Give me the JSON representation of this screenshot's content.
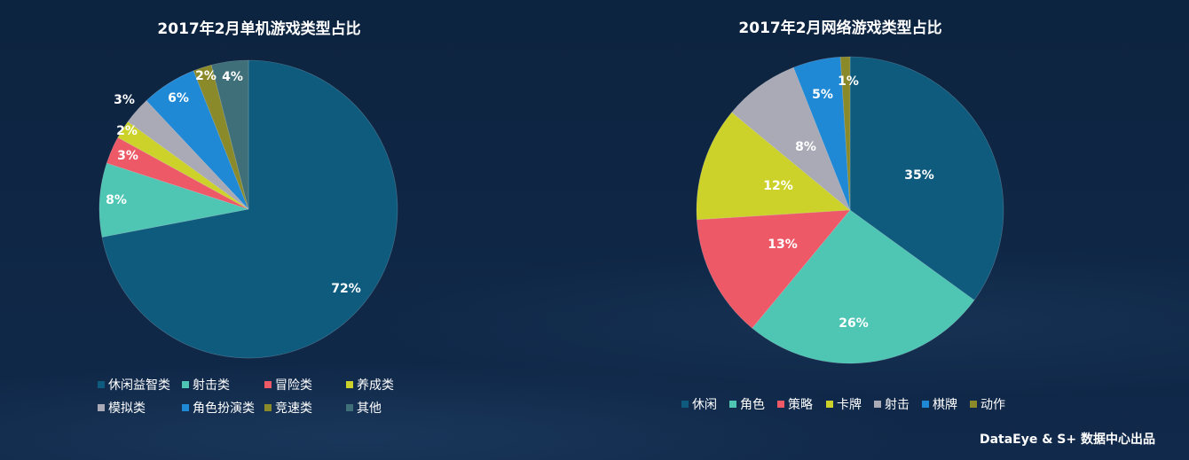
{
  "footer": "DataEye & S+ 数据中心出品",
  "colors": {
    "background": "#0f2742",
    "teal_blue": "#0f5b7e",
    "mint": "#4ec6b3",
    "red": "#ee5968",
    "yellow": "#cdd22a",
    "gray": "#a9aab5",
    "blue": "#2089d6",
    "olive": "#8a8a2a",
    "dark_teal": "#3f6f78"
  },
  "chart_data": [
    {
      "type": "pie",
      "title": "2017年2月单机游戏类型占比",
      "slices": [
        {
          "name": "休闲益智类",
          "value": 72,
          "label": "72%",
          "color": "#0f5b7e"
        },
        {
          "name": "射击类",
          "value": 8,
          "label": "8%",
          "color": "#4ec6b3"
        },
        {
          "name": "冒险类",
          "value": 3,
          "label": "3%",
          "color": "#ee5968"
        },
        {
          "name": "养成类",
          "value": 2,
          "label": "2%",
          "color": "#cdd22a"
        },
        {
          "name": "模拟类",
          "value": 3,
          "label": "3%",
          "color": "#a9aab5"
        },
        {
          "name": "角色扮演类",
          "value": 6,
          "label": "6%",
          "color": "#2089d6"
        },
        {
          "name": "竞速类",
          "value": 2,
          "label": "2%",
          "color": "#8a8a2a"
        },
        {
          "name": "其他",
          "value": 4,
          "label": "4%",
          "color": "#3f6f78"
        }
      ],
      "legend_position": "bottom"
    },
    {
      "type": "pie",
      "title": "2017年2月网络游戏类型占比",
      "slices": [
        {
          "name": "休闲",
          "value": 35,
          "label": "35%",
          "color": "#0f5b7e"
        },
        {
          "name": "角色",
          "value": 26,
          "label": "26%",
          "color": "#4ec6b3"
        },
        {
          "name": "策略",
          "value": 13,
          "label": "13%",
          "color": "#ee5968"
        },
        {
          "name": "卡牌",
          "value": 12,
          "label": "12%",
          "color": "#cdd22a"
        },
        {
          "name": "射击",
          "value": 8,
          "label": "8%",
          "color": "#a9aab5"
        },
        {
          "name": "棋牌",
          "value": 5,
          "label": "5%",
          "color": "#2089d6"
        },
        {
          "name": "动作",
          "value": 1,
          "label": "1%",
          "color": "#8a8a2a"
        }
      ],
      "legend_position": "bottom"
    }
  ]
}
